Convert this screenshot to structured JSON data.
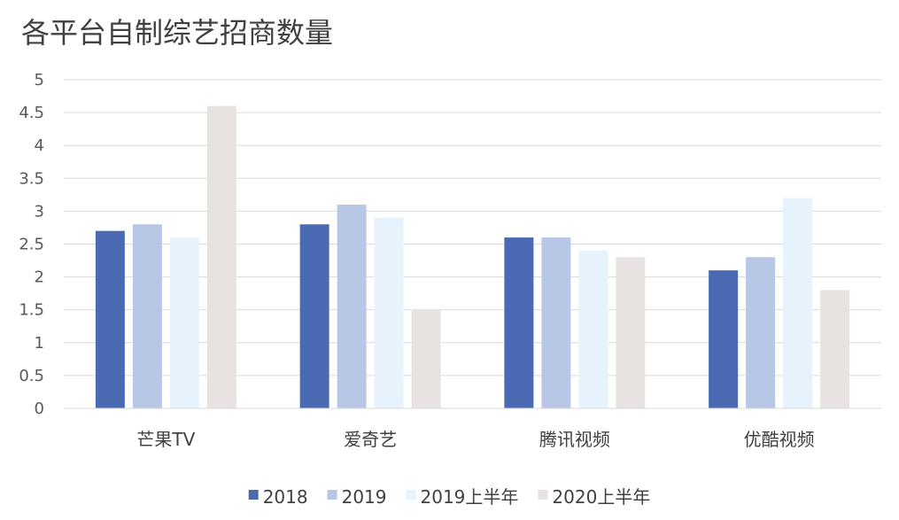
{
  "chart_data": {
    "type": "bar",
    "title": "各平台自制综艺招商数量",
    "categories": [
      "芒果TV",
      "爱奇艺",
      "腾讯视频",
      "优酷视频"
    ],
    "series": [
      {
        "name": "2018",
        "color": "#4a6bb3",
        "values": [
          2.7,
          2.8,
          2.6,
          2.1
        ]
      },
      {
        "name": "2019",
        "color": "#b9c7e6",
        "values": [
          2.8,
          3.1,
          2.6,
          2.3
        ]
      },
      {
        "name": "2019上半年",
        "color": "#e6f2fc",
        "values": [
          2.6,
          2.9,
          2.4,
          3.2
        ]
      },
      {
        "name": "2020上半年",
        "color": "#e8e3e1",
        "values": [
          4.6,
          1.5,
          2.3,
          1.8
        ]
      }
    ],
    "ylim": [
      0,
      5
    ],
    "yticks": [
      "0",
      "0.5",
      "1",
      "1.5",
      "2",
      "2.5",
      "3",
      "3.5",
      "4",
      "4.5",
      "5"
    ],
    "grid": true,
    "legend_position": "bottom"
  }
}
